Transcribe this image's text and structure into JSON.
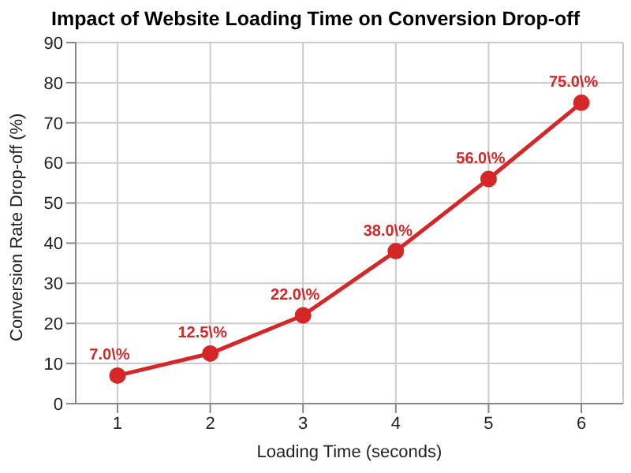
{
  "chart_data": {
    "type": "line",
    "title": "Impact of Website Loading Time on Conversion Drop-off",
    "xlabel": "Loading Time (seconds)",
    "ylabel": "Conversion Rate Drop-off (%)",
    "x": [
      1,
      2,
      3,
      4,
      5,
      6
    ],
    "series": [
      {
        "color": "#d62728",
        "values": [
          7,
          12.5,
          22,
          38,
          56,
          75
        ],
        "value_labels": [
          "7.0\\%",
          "12.5\\%",
          "22.0\\%",
          "38.0\\%",
          "56.0\\%",
          "75.0\\%"
        ]
      }
    ],
    "xlim": [
      0.55,
      6.45
    ],
    "xticks": [
      1,
      2,
      3,
      4,
      5,
      6
    ],
    "ylim": [
      0,
      90
    ],
    "yticks": [
      0,
      10,
      20,
      30,
      40,
      50,
      60,
      70,
      80,
      90
    ],
    "grid": true,
    "marker": "circle",
    "line_style": "solid"
  }
}
